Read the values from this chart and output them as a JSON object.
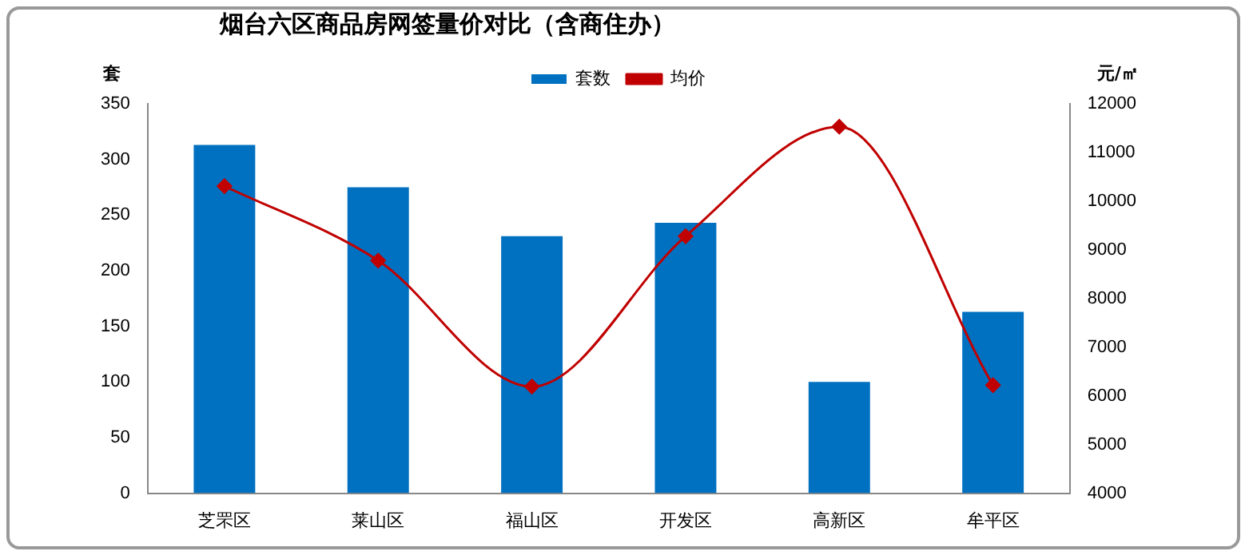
{
  "chart_data": {
    "type": "bar",
    "title": "烟台六区商品房网签量价对比（含商住办）",
    "ylabel": "套",
    "y2label": "元/㎡",
    "categories": [
      "芝罘区",
      "莱山区",
      "福山区",
      "开发区",
      "高新区",
      "牟平区"
    ],
    "series": [
      {
        "name": "套数",
        "color": "#0070c0",
        "values": [
          313,
          275,
          231,
          243,
          100,
          163
        ]
      },
      {
        "name": "均价",
        "type": "line",
        "axis": "y2",
        "color": "#c00000",
        "marker": "diamond",
        "values": [
          10310,
          8780,
          6190,
          9280,
          11530,
          6220
        ]
      }
    ],
    "ylim": [
      0,
      350
    ],
    "yticks": [
      0,
      50,
      100,
      150,
      200,
      250,
      300,
      350
    ],
    "y2lim": [
      4000,
      12000
    ],
    "y2ticks": [
      4000,
      5000,
      6000,
      7000,
      8000,
      9000,
      10000,
      11000,
      12000
    ],
    "grid": false,
    "legend": "top"
  }
}
